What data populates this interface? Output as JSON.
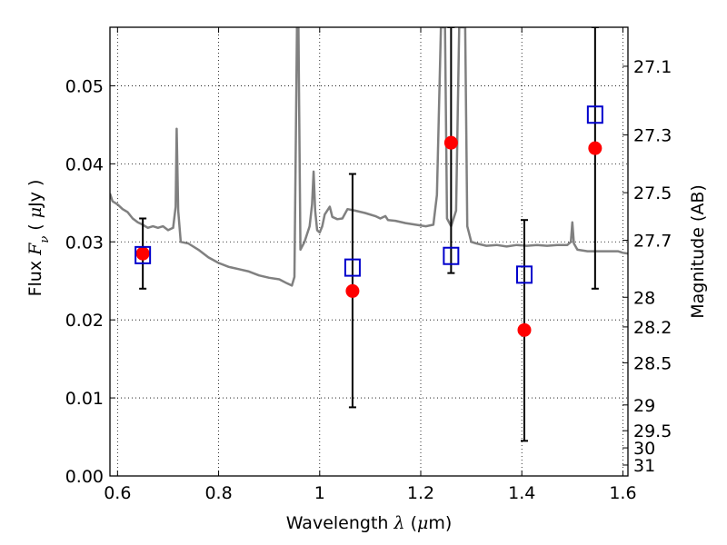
{
  "chart_data": {
    "type": "scatter",
    "xlabel": {
      "prefix": "Wavelength ",
      "symbol": "λ",
      "unit_open": " (",
      "unit_mu": "μ",
      "unit_rest": "m)"
    },
    "ylabel": {
      "prefix": "Flux ",
      "symbol": "F",
      "subscript": "ν",
      "unit_open": " ( ",
      "unit_mu": "μ",
      "unit_rest": "Jy )"
    },
    "y2label": "Magnitude (AB)",
    "xlim": [
      0.585,
      1.61
    ],
    "ylim": [
      0.0,
      0.0575
    ],
    "xticks": [
      {
        "value": 0.6,
        "label": "0.6"
      },
      {
        "value": 0.8,
        "label": "0.8"
      },
      {
        "value": 1.0,
        "label": "1"
      },
      {
        "value": 1.2,
        "label": "1.2"
      },
      {
        "value": 1.4,
        "label": "1.4"
      },
      {
        "value": 1.6,
        "label": "1.6"
      }
    ],
    "yticks": [
      {
        "value": 0.0,
        "label": "0.00"
      },
      {
        "value": 0.01,
        "label": "0.01"
      },
      {
        "value": 0.02,
        "label": "0.02"
      },
      {
        "value": 0.03,
        "label": "0.03"
      },
      {
        "value": 0.04,
        "label": "0.04"
      },
      {
        "value": 0.05,
        "label": "0.05"
      }
    ],
    "y2ticks": [
      {
        "flux": 0.0525,
        "label": "27.1"
      },
      {
        "flux": 0.0437,
        "label": "27.3"
      },
      {
        "flux": 0.0363,
        "label": "27.5"
      },
      {
        "flux": 0.0302,
        "label": "27.7"
      },
      {
        "flux": 0.0229,
        "label": "28"
      },
      {
        "flux": 0.0191,
        "label": "28.2"
      },
      {
        "flux": 0.0145,
        "label": "28.5"
      },
      {
        "flux": 0.0091,
        "label": "29"
      },
      {
        "flux": 0.0058,
        "label": "29.5"
      },
      {
        "flux": 0.0036,
        "label": "30"
      },
      {
        "flux": 0.0014,
        "label": "31"
      }
    ],
    "grid": true,
    "series": [
      {
        "style": "line",
        "color": "#808080",
        "points": [
          [
            0.585,
            0.0362
          ],
          [
            0.59,
            0.0352
          ],
          [
            0.6,
            0.0348
          ],
          [
            0.61,
            0.0342
          ],
          [
            0.62,
            0.0338
          ],
          [
            0.63,
            0.033
          ],
          [
            0.64,
            0.0325
          ],
          [
            0.65,
            0.0322
          ],
          [
            0.66,
            0.0318
          ],
          [
            0.67,
            0.032
          ],
          [
            0.68,
            0.0318
          ],
          [
            0.69,
            0.032
          ],
          [
            0.7,
            0.0315
          ],
          [
            0.71,
            0.0318
          ],
          [
            0.715,
            0.0345
          ],
          [
            0.717,
            0.0445
          ],
          [
            0.72,
            0.034
          ],
          [
            0.725,
            0.03
          ],
          [
            0.74,
            0.0298
          ],
          [
            0.76,
            0.029
          ],
          [
            0.78,
            0.028
          ],
          [
            0.8,
            0.0273
          ],
          [
            0.82,
            0.0268
          ],
          [
            0.84,
            0.0265
          ],
          [
            0.86,
            0.0262
          ],
          [
            0.88,
            0.0257
          ],
          [
            0.9,
            0.0254
          ],
          [
            0.92,
            0.0252
          ],
          [
            0.935,
            0.0247
          ],
          [
            0.945,
            0.0244
          ],
          [
            0.95,
            0.0255
          ],
          [
            0.955,
            0.0575
          ],
          [
            0.958,
            0.0575
          ],
          [
            0.962,
            0.029
          ],
          [
            0.97,
            0.03
          ],
          [
            0.98,
            0.032
          ],
          [
            0.985,
            0.0348
          ],
          [
            0.988,
            0.039
          ],
          [
            0.991,
            0.034
          ],
          [
            0.995,
            0.0315
          ],
          [
            1.0,
            0.0312
          ],
          [
            1.005,
            0.032
          ],
          [
            1.01,
            0.0335
          ],
          [
            1.02,
            0.0345
          ],
          [
            1.025,
            0.0332
          ],
          [
            1.035,
            0.0329
          ],
          [
            1.045,
            0.033
          ],
          [
            1.055,
            0.0342
          ],
          [
            1.07,
            0.034
          ],
          [
            1.09,
            0.0337
          ],
          [
            1.11,
            0.0333
          ],
          [
            1.12,
            0.033
          ],
          [
            1.13,
            0.0333
          ],
          [
            1.135,
            0.0328
          ],
          [
            1.15,
            0.0327
          ],
          [
            1.17,
            0.0324
          ],
          [
            1.19,
            0.0322
          ],
          [
            1.21,
            0.032
          ],
          [
            1.225,
            0.0322
          ],
          [
            1.232,
            0.036
          ],
          [
            1.24,
            0.0575
          ],
          [
            1.248,
            0.0575
          ],
          [
            1.252,
            0.033
          ],
          [
            1.26,
            0.032
          ],
          [
            1.27,
            0.034
          ],
          [
            1.276,
            0.0575
          ],
          [
            1.288,
            0.0575
          ],
          [
            1.292,
            0.032
          ],
          [
            1.3,
            0.03
          ],
          [
            1.31,
            0.0298
          ],
          [
            1.33,
            0.0295
          ],
          [
            1.35,
            0.0296
          ],
          [
            1.37,
            0.0294
          ],
          [
            1.39,
            0.0296
          ],
          [
            1.41,
            0.0295
          ],
          [
            1.43,
            0.0296
          ],
          [
            1.45,
            0.0295
          ],
          [
            1.47,
            0.0296
          ],
          [
            1.49,
            0.0296
          ],
          [
            1.497,
            0.03
          ],
          [
            1.5,
            0.0325
          ],
          [
            1.503,
            0.0298
          ],
          [
            1.51,
            0.029
          ],
          [
            1.53,
            0.0288
          ],
          [
            1.55,
            0.0288
          ],
          [
            1.57,
            0.0288
          ],
          [
            1.59,
            0.0288
          ],
          [
            1.6,
            0.0286
          ],
          [
            1.61,
            0.0285
          ]
        ]
      },
      {
        "style": "errorbar",
        "color": "#000000",
        "points": [
          {
            "x": 0.65,
            "y": 0.0285,
            "ylow": 0.024,
            "yhigh": 0.033
          },
          {
            "x": 1.065,
            "y": 0.0237,
            "ylow": 0.0088,
            "yhigh": 0.0387
          },
          {
            "x": 1.26,
            "y": 0.0427,
            "ylow": 0.026,
            "yhigh": 0.0575
          },
          {
            "x": 1.405,
            "y": 0.0187,
            "ylow": 0.0045,
            "yhigh": 0.0328
          },
          {
            "x": 1.545,
            "y": 0.042,
            "ylow": 0.024,
            "yhigh": 0.0575
          }
        ]
      },
      {
        "style": "markers",
        "marker": "circle",
        "color": "#ff0000",
        "points": [
          [
            0.65,
            0.0285
          ],
          [
            1.065,
            0.0237
          ],
          [
            1.26,
            0.0427
          ],
          [
            1.405,
            0.0187
          ],
          [
            1.545,
            0.042
          ]
        ]
      },
      {
        "style": "markers",
        "marker": "square-open",
        "color": "#0000cc",
        "points": [
          [
            0.65,
            0.0283
          ],
          [
            1.065,
            0.0267
          ],
          [
            1.26,
            0.0282
          ],
          [
            1.405,
            0.0258
          ],
          [
            1.545,
            0.0463
          ]
        ]
      }
    ]
  }
}
